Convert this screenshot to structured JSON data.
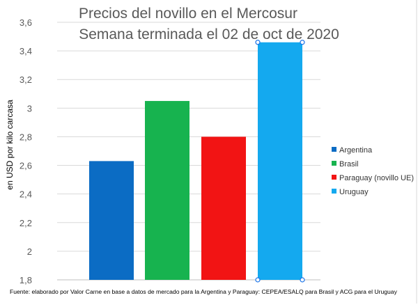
{
  "chart_data": {
    "type": "bar",
    "title": "Precios del novillo en el Mercosur",
    "subtitle": "Semana terminada el 02 de oct de 2020",
    "ylabel": "en USD por kilo carcasa",
    "xlabel": "",
    "ylim": [
      1.8,
      3.6
    ],
    "yticks": [
      "1,8",
      "2",
      "2,2",
      "2,4",
      "2,6",
      "2,8",
      "3",
      "3,2",
      "3,4",
      "3,6"
    ],
    "grid": true,
    "legend_position": "right",
    "series": [
      {
        "name": "Argentina",
        "value": 2.63,
        "color": "#0B6CC4"
      },
      {
        "name": "Brasil",
        "value": 3.05,
        "color": "#17B34F"
      },
      {
        "name": "Paraguay (novillo UE)",
        "value": 2.8,
        "color": "#F21414"
      },
      {
        "name": "Uruguay",
        "value": 3.46,
        "color": "#14A9EF"
      }
    ],
    "source_note": "Fuente: elaborado por Valor Carne en base a datos de mercado para la Argentina y Paraguay: CEPEA/ESALQ para Brasil y ACG para el Uruguay"
  }
}
